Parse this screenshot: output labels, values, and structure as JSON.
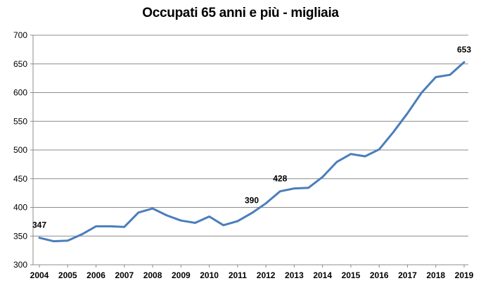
{
  "chart_data": {
    "type": "line",
    "title": "Occupati 65 anni e più - migliaia",
    "xlabel": "",
    "ylabel": "",
    "ylim": [
      300,
      700
    ],
    "y_ticks": [
      300,
      350,
      400,
      450,
      500,
      550,
      600,
      650,
      700
    ],
    "x_tick_labels": [
      "2004",
      "2005",
      "2006",
      "2007",
      "2008",
      "2009",
      "2010",
      "2011",
      "2012",
      "2013",
      "2014",
      "2015",
      "2016",
      "2017",
      "2018",
      "2019"
    ],
    "grid": "horizontal",
    "line_color": "#4A7EBB",
    "series": [
      {
        "values": [
          347,
          341,
          342,
          353,
          367,
          367,
          366,
          391,
          398,
          386,
          377,
          373,
          384,
          369,
          376,
          390,
          407,
          428,
          433,
          434,
          453,
          479,
          493,
          489,
          501,
          531,
          564,
          600,
          627,
          631,
          653
        ]
      }
    ],
    "data_labels": [
      {
        "index": 0,
        "text": "347"
      },
      {
        "index": 15,
        "text": "390"
      },
      {
        "index": 17,
        "text": "428"
      },
      {
        "index": 30,
        "text": "653"
      }
    ]
  }
}
